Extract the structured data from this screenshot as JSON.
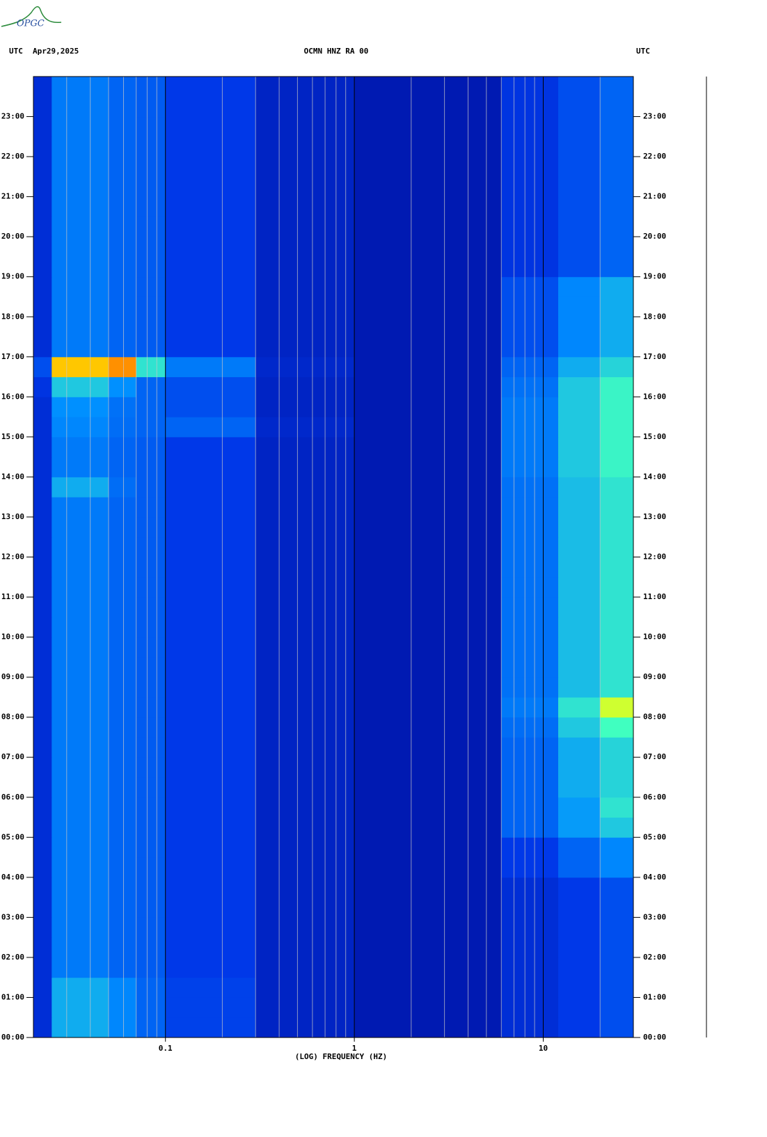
{
  "chart_data": {
    "type": "heatmap",
    "logo": "OPGC",
    "left_label": "UTC",
    "date": "Apr29,2025",
    "title": "OCMN HNZ RA 00",
    "right_label": "UTC",
    "xlabel": "(LOG) FREQUENCY (HZ)",
    "xscale": "log",
    "xlim": [
      0.02,
      30
    ],
    "xticks": [
      0.1,
      1,
      10
    ],
    "xgrid": [
      0.03,
      0.04,
      0.05,
      0.06,
      0.07,
      0.08,
      0.09,
      0.2,
      0.3,
      0.4,
      0.5,
      0.6,
      0.7,
      0.8,
      0.9,
      2,
      3,
      4,
      5,
      6,
      7,
      8,
      9,
      20,
      30
    ],
    "ylim": [
      0,
      24
    ],
    "yticks": [
      {
        "value": 0,
        "label": "00:00"
      },
      {
        "value": 1,
        "label": "01:00"
      },
      {
        "value": 2,
        "label": "02:00"
      },
      {
        "value": 3,
        "label": "03:00"
      },
      {
        "value": 4,
        "label": "04:00"
      },
      {
        "value": 5,
        "label": "05:00"
      },
      {
        "value": 6,
        "label": "06:00"
      },
      {
        "value": 7,
        "label": "07:00"
      },
      {
        "value": 8,
        "label": "08:00"
      },
      {
        "value": 9,
        "label": "09:00"
      },
      {
        "value": 10,
        "label": "10:00"
      },
      {
        "value": 11,
        "label": "11:00"
      },
      {
        "value": 12,
        "label": "12:00"
      },
      {
        "value": 13,
        "label": "13:00"
      },
      {
        "value": 14,
        "label": "14:00"
      },
      {
        "value": 15,
        "label": "15:00"
      },
      {
        "value": 16,
        "label": "16:00"
      },
      {
        "value": 17,
        "label": "17:00"
      },
      {
        "value": 18,
        "label": "18:00"
      },
      {
        "value": 19,
        "label": "19:00"
      },
      {
        "value": 20,
        "label": "20:00"
      },
      {
        "value": 21,
        "label": "21:00"
      },
      {
        "value": 22,
        "label": "22:00"
      },
      {
        "value": 23,
        "label": "23:00"
      }
    ],
    "colormap": [
      "#0010a0",
      "#0038e8",
      "#0090ff",
      "#40ffc0",
      "#ffff00",
      "#ff2000"
    ],
    "xbins": [
      0.02,
      0.025,
      0.05,
      0.07,
      0.1,
      0.3,
      1,
      6,
      12,
      20,
      30
    ],
    "ybins": [
      0,
      0.5,
      1,
      1.5,
      2,
      2.5,
      3,
      3.5,
      4,
      4.5,
      5,
      5.5,
      6,
      6.5,
      7,
      7.5,
      8,
      8.5,
      9,
      9.5,
      10,
      10.5,
      11,
      11.5,
      12,
      12.5,
      13,
      13.5,
      14,
      14.5,
      15,
      15.5,
      16,
      16.5,
      17,
      17.5,
      18,
      18.5,
      19,
      19.5,
      20,
      20.5,
      21,
      21.5,
      22,
      22.5,
      23,
      23.5,
      24
    ],
    "z": [
      [
        0.15,
        0.45,
        0.38,
        0.3,
        0.22,
        0.1,
        0.05,
        0.15,
        0.2,
        0.25
      ],
      [
        0.15,
        0.45,
        0.38,
        0.3,
        0.22,
        0.1,
        0.05,
        0.15,
        0.2,
        0.25
      ],
      [
        0.15,
        0.45,
        0.38,
        0.3,
        0.22,
        0.1,
        0.05,
        0.15,
        0.2,
        0.25
      ],
      [
        0.15,
        0.35,
        0.3,
        0.28,
        0.2,
        0.1,
        0.05,
        0.15,
        0.2,
        0.25
      ],
      [
        0.15,
        0.35,
        0.3,
        0.28,
        0.2,
        0.1,
        0.05,
        0.15,
        0.2,
        0.25
      ],
      [
        0.15,
        0.35,
        0.3,
        0.28,
        0.2,
        0.1,
        0.05,
        0.15,
        0.2,
        0.25
      ],
      [
        0.15,
        0.35,
        0.3,
        0.28,
        0.2,
        0.1,
        0.05,
        0.15,
        0.2,
        0.25
      ],
      [
        0.15,
        0.35,
        0.3,
        0.28,
        0.2,
        0.1,
        0.05,
        0.15,
        0.2,
        0.25
      ],
      [
        0.15,
        0.35,
        0.3,
        0.28,
        0.2,
        0.1,
        0.05,
        0.2,
        0.3,
        0.38
      ],
      [
        0.15,
        0.35,
        0.3,
        0.28,
        0.2,
        0.1,
        0.05,
        0.2,
        0.3,
        0.38
      ],
      [
        0.15,
        0.35,
        0.3,
        0.28,
        0.2,
        0.1,
        0.05,
        0.3,
        0.42,
        0.5
      ],
      [
        0.15,
        0.35,
        0.3,
        0.28,
        0.2,
        0.1,
        0.05,
        0.3,
        0.42,
        0.55
      ],
      [
        0.15,
        0.35,
        0.3,
        0.28,
        0.2,
        0.1,
        0.05,
        0.3,
        0.45,
        0.52
      ],
      [
        0.15,
        0.35,
        0.3,
        0.28,
        0.2,
        0.1,
        0.05,
        0.3,
        0.45,
        0.52
      ],
      [
        0.15,
        0.35,
        0.3,
        0.28,
        0.2,
        0.1,
        0.05,
        0.3,
        0.45,
        0.52
      ],
      [
        0.15,
        0.35,
        0.3,
        0.28,
        0.2,
        0.1,
        0.05,
        0.32,
        0.5,
        0.6
      ],
      [
        0.15,
        0.35,
        0.3,
        0.28,
        0.2,
        0.1,
        0.05,
        0.35,
        0.55,
        0.75
      ],
      [
        0.15,
        0.35,
        0.3,
        0.28,
        0.2,
        0.1,
        0.05,
        0.33,
        0.48,
        0.55
      ],
      [
        0.15,
        0.35,
        0.3,
        0.28,
        0.2,
        0.1,
        0.05,
        0.33,
        0.48,
        0.55
      ],
      [
        0.15,
        0.35,
        0.3,
        0.28,
        0.2,
        0.1,
        0.05,
        0.33,
        0.48,
        0.55
      ],
      [
        0.15,
        0.35,
        0.3,
        0.28,
        0.2,
        0.1,
        0.05,
        0.33,
        0.48,
        0.55
      ],
      [
        0.15,
        0.35,
        0.3,
        0.28,
        0.2,
        0.1,
        0.05,
        0.33,
        0.48,
        0.55
      ],
      [
        0.15,
        0.35,
        0.3,
        0.28,
        0.2,
        0.1,
        0.05,
        0.33,
        0.48,
        0.55
      ],
      [
        0.15,
        0.35,
        0.3,
        0.28,
        0.2,
        0.1,
        0.05,
        0.33,
        0.48,
        0.55
      ],
      [
        0.15,
        0.35,
        0.3,
        0.28,
        0.2,
        0.1,
        0.05,
        0.33,
        0.48,
        0.55
      ],
      [
        0.15,
        0.35,
        0.3,
        0.28,
        0.2,
        0.1,
        0.05,
        0.33,
        0.48,
        0.55
      ],
      [
        0.15,
        0.35,
        0.3,
        0.28,
        0.2,
        0.1,
        0.05,
        0.33,
        0.48,
        0.55
      ],
      [
        0.15,
        0.45,
        0.32,
        0.28,
        0.2,
        0.1,
        0.05,
        0.33,
        0.48,
        0.55
      ],
      [
        0.15,
        0.35,
        0.3,
        0.28,
        0.2,
        0.1,
        0.05,
        0.35,
        0.5,
        0.58
      ],
      [
        0.15,
        0.35,
        0.3,
        0.28,
        0.2,
        0.1,
        0.05,
        0.35,
        0.5,
        0.58
      ],
      [
        0.15,
        0.38,
        0.32,
        0.3,
        0.3,
        0.12,
        0.05,
        0.35,
        0.5,
        0.58
      ],
      [
        0.15,
        0.4,
        0.33,
        0.3,
        0.25,
        0.1,
        0.05,
        0.35,
        0.5,
        0.58
      ],
      [
        0.18,
        0.5,
        0.4,
        0.3,
        0.25,
        0.1,
        0.05,
        0.33,
        0.5,
        0.58
      ],
      [
        0.25,
        0.85,
        0.9,
        0.55,
        0.35,
        0.12,
        0.05,
        0.3,
        0.45,
        0.52
      ],
      [
        0.15,
        0.35,
        0.3,
        0.28,
        0.2,
        0.1,
        0.05,
        0.25,
        0.38,
        0.45
      ],
      [
        0.15,
        0.35,
        0.3,
        0.28,
        0.2,
        0.1,
        0.05,
        0.25,
        0.38,
        0.45
      ],
      [
        0.15,
        0.35,
        0.3,
        0.28,
        0.2,
        0.1,
        0.05,
        0.25,
        0.38,
        0.45
      ],
      [
        0.15,
        0.35,
        0.3,
        0.28,
        0.2,
        0.1,
        0.05,
        0.25,
        0.38,
        0.45
      ],
      [
        0.15,
        0.35,
        0.3,
        0.28,
        0.2,
        0.1,
        0.05,
        0.18,
        0.25,
        0.3
      ],
      [
        0.15,
        0.35,
        0.3,
        0.28,
        0.2,
        0.1,
        0.05,
        0.18,
        0.25,
        0.3
      ],
      [
        0.15,
        0.35,
        0.3,
        0.28,
        0.2,
        0.1,
        0.05,
        0.18,
        0.25,
        0.3
      ],
      [
        0.15,
        0.35,
        0.3,
        0.28,
        0.2,
        0.1,
        0.05,
        0.18,
        0.25,
        0.3
      ],
      [
        0.15,
        0.35,
        0.3,
        0.28,
        0.2,
        0.1,
        0.05,
        0.18,
        0.25,
        0.3
      ],
      [
        0.15,
        0.35,
        0.3,
        0.28,
        0.2,
        0.1,
        0.05,
        0.18,
        0.25,
        0.3
      ],
      [
        0.15,
        0.35,
        0.3,
        0.28,
        0.2,
        0.1,
        0.05,
        0.18,
        0.25,
        0.3
      ],
      [
        0.15,
        0.35,
        0.3,
        0.28,
        0.2,
        0.1,
        0.05,
        0.18,
        0.25,
        0.3
      ],
      [
        0.15,
        0.35,
        0.3,
        0.28,
        0.2,
        0.1,
        0.05,
        0.18,
        0.25,
        0.3
      ],
      [
        0.15,
        0.35,
        0.3,
        0.28,
        0.2,
        0.1,
        0.05,
        0.18,
        0.25,
        0.3
      ]
    ]
  }
}
